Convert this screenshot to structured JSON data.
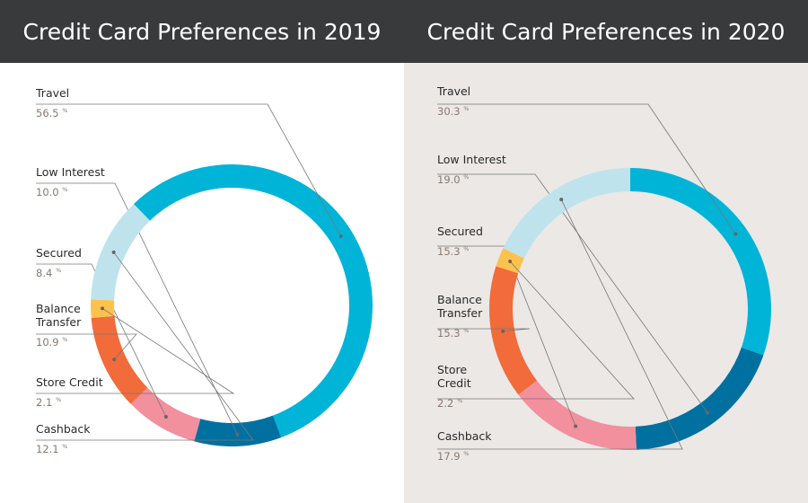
{
  "colors": {
    "travel": "#00b4d8",
    "low_interest": "#0070a0",
    "secured": "#f2909d",
    "balance_transfer": "#f26b3a",
    "store_credit": "#fdc24e",
    "cashback": "#bfe3ec",
    "header_bg": "#393a3b",
    "right_bg": "#ebe8e6",
    "leader": "#777777"
  },
  "chart_data": [
    {
      "type": "pie",
      "title": "Credit Card Preferences in 2019",
      "unit": "%",
      "categories": [
        {
          "key": "travel",
          "label_lines": [
            "Travel"
          ],
          "value": 56.5,
          "value_label": "56.5"
        },
        {
          "key": "low_interest",
          "label_lines": [
            "Low Interest"
          ],
          "value": 10.0,
          "value_label": "10.0"
        },
        {
          "key": "secured",
          "label_lines": [
            "Secured"
          ],
          "value": 8.4,
          "value_label": "8.4"
        },
        {
          "key": "balance_transfer",
          "label_lines": [
            "Balance",
            "Transfer"
          ],
          "value": 10.9,
          "value_label": "10.9"
        },
        {
          "key": "store_credit",
          "label_lines": [
            "Store Credit"
          ],
          "value": 2.1,
          "value_label": "2.1"
        },
        {
          "key": "cashback",
          "label_lines": [
            "Cashback"
          ],
          "value": 12.1,
          "value_label": "12.1"
        }
      ]
    },
    {
      "type": "pie",
      "title": "Credit Card Preferences in 2020",
      "unit": "%",
      "categories": [
        {
          "key": "travel",
          "label_lines": [
            "Travel"
          ],
          "value": 30.3,
          "value_label": "30.3"
        },
        {
          "key": "low_interest",
          "label_lines": [
            "Low Interest"
          ],
          "value": 19.0,
          "value_label": "19.0"
        },
        {
          "key": "secured",
          "label_lines": [
            "Secured"
          ],
          "value": 15.3,
          "value_label": "15.3"
        },
        {
          "key": "balance_transfer",
          "label_lines": [
            "Balance",
            "Transfer"
          ],
          "value": 15.3,
          "value_label": "15.3"
        },
        {
          "key": "store_credit",
          "label_lines": [
            "Store",
            "Credit"
          ],
          "value": 2.2,
          "value_label": "2.2"
        },
        {
          "key": "cashback",
          "label_lines": [
            "Cashback"
          ],
          "value": 17.9,
          "value_label": "17.9"
        }
      ]
    }
  ]
}
